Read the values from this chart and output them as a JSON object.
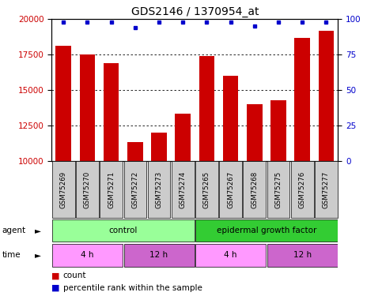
{
  "title": "GDS2146 / 1370954_at",
  "samples": [
    "GSM75269",
    "GSM75270",
    "GSM75271",
    "GSM75272",
    "GSM75273",
    "GSM75274",
    "GSM75265",
    "GSM75267",
    "GSM75268",
    "GSM75275",
    "GSM75276",
    "GSM75277"
  ],
  "counts": [
    18100,
    17500,
    16900,
    11300,
    12000,
    13300,
    17400,
    16000,
    14000,
    14300,
    18700,
    19200
  ],
  "percentiles": [
    98,
    98,
    98,
    94,
    98,
    98,
    98,
    98,
    95,
    98,
    98,
    98
  ],
  "ylim_left": [
    10000,
    20000
  ],
  "ylim_right": [
    0,
    100
  ],
  "yticks_left": [
    10000,
    12500,
    15000,
    17500,
    20000
  ],
  "yticks_right": [
    0,
    25,
    50,
    75,
    100
  ],
  "bar_color": "#cc0000",
  "dot_color": "#0000cc",
  "agent_groups": [
    {
      "label": "control",
      "start": 0,
      "end": 6,
      "color": "#99ff99"
    },
    {
      "label": "epidermal growth factor",
      "start": 6,
      "end": 12,
      "color": "#33cc33"
    }
  ],
  "time_groups": [
    {
      "label": "4 h",
      "start": 0,
      "end": 3,
      "color": "#ff99ff"
    },
    {
      "label": "12 h",
      "start": 3,
      "end": 6,
      "color": "#cc66cc"
    },
    {
      "label": "4 h",
      "start": 6,
      "end": 9,
      "color": "#ff99ff"
    },
    {
      "label": "12 h",
      "start": 9,
      "end": 12,
      "color": "#cc66cc"
    }
  ],
  "tick_label_bg": "#cccccc",
  "left_label_color": "#cc0000",
  "right_label_color": "#0000cc"
}
